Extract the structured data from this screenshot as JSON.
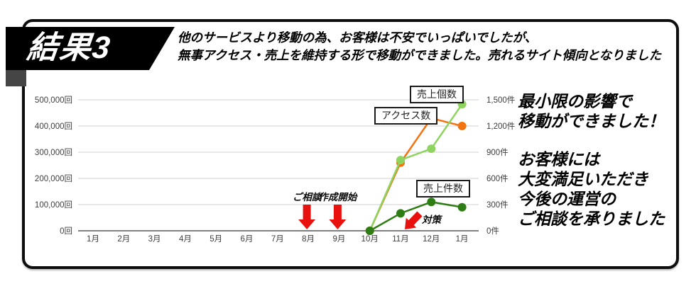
{
  "header": {
    "badge": "結果3",
    "line1": "他のサービスより移動の為、お客様は不安でいっぱいでしたが、",
    "line2": "無事アクセス・売上を維持する形で移動ができました。売れるサイト傾向となりました"
  },
  "chart_data": {
    "type": "line",
    "categories": [
      "1月",
      "2月",
      "3月",
      "4月",
      "5月",
      "6月",
      "7月",
      "8月",
      "9月",
      "10月",
      "11月",
      "12月",
      "1月"
    ],
    "series": [
      {
        "name": "アクセス数",
        "axis": "left",
        "color": "#f4730e",
        "values": [
          null,
          null,
          null,
          null,
          null,
          null,
          null,
          null,
          null,
          0,
          260000,
          430000,
          400000
        ]
      },
      {
        "name": "売上個数",
        "axis": "right",
        "color": "#8ed45f",
        "values": [
          null,
          null,
          null,
          null,
          null,
          null,
          null,
          null,
          null,
          0,
          810,
          940,
          1450
        ]
      },
      {
        "name": "売上件数",
        "axis": "right",
        "color": "#2e7d14",
        "values": [
          null,
          null,
          null,
          null,
          null,
          null,
          null,
          null,
          null,
          0,
          200,
          330,
          270
        ]
      }
    ],
    "left_axis": {
      "unit": "回",
      "min": 0,
      "max": 500000,
      "ticks": [
        "0回",
        "100,000回",
        "200,000回",
        "300,000回",
        "400,000回",
        "500,000回"
      ]
    },
    "right_axis": {
      "unit": "件",
      "min": 0,
      "max": 1500,
      "ticks": [
        "0件",
        "300件",
        "600件",
        "900件",
        "1,200件",
        "1,500件"
      ]
    },
    "annotations": [
      {
        "label": "ご相談",
        "month_index": 7,
        "dir": "down"
      },
      {
        "label": "作成開始",
        "month_index": 8,
        "dir": "down"
      },
      {
        "label": "対策",
        "month_index": 10,
        "dir": "diagonal"
      }
    ],
    "grid": true,
    "legend_position": "boxed-labels-on-chart"
  },
  "side_text": {
    "headline_line1": "最小限の影響で",
    "headline_line2": "移動ができました！",
    "body_line1": "お客様には",
    "body_line2": "大変満足いただき",
    "body_line3": "今後の運営の",
    "body_line4": "ご相談を承りました"
  },
  "colors": {
    "arrow_red": "#e8110d",
    "grid_line": "#d2d2d2",
    "axis_line": "#7f7f7f",
    "ribbon_black": "#000000",
    "ribbon_fold_gray": "#454545"
  }
}
